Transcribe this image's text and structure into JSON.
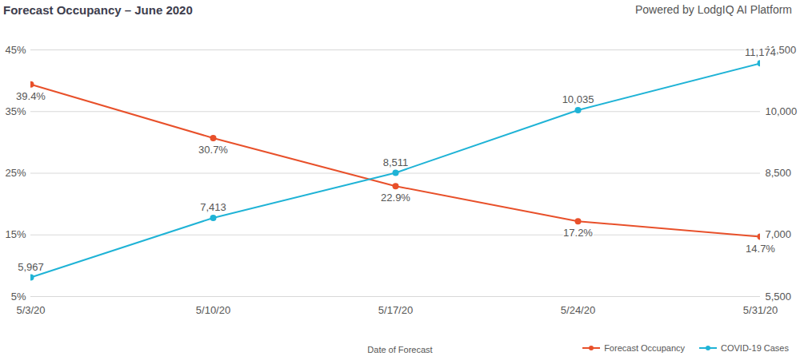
{
  "chart_data": {
    "type": "line",
    "title": "Forecast Occupancy – June 2020",
    "subtitle": "Powered by LodgIQ AI Platform",
    "x_label": "Date of Forecast",
    "categories": [
      "5/3/20",
      "5/10/20",
      "5/17/20",
      "5/24/20",
      "5/31/20"
    ],
    "series": [
      {
        "name": "Forecast Occupancy",
        "color": "#e8502a",
        "marker": "circle",
        "values": [
          39.4,
          30.7,
          22.9,
          17.2,
          14.7
        ],
        "value_labels": [
          "39.4%",
          "30.7%",
          "22.9%",
          "17.2%",
          "14.7%"
        ]
      },
      {
        "name": "COVID-19 Cases",
        "color": "#1fb3d6",
        "marker": "circle",
        "axis": "y2",
        "values": [
          5967,
          7413,
          8511,
          10035,
          11174
        ],
        "value_labels": [
          "5,967",
          "7,413",
          "8,511",
          "10,035",
          "11,174"
        ]
      }
    ],
    "ylim": [
      5,
      45
    ],
    "yticks": [
      {
        "value": 5,
        "label": "5%"
      },
      {
        "value": 15,
        "label": "15%"
      },
      {
        "value": 25,
        "label": "25%"
      },
      {
        "value": 35,
        "label": "35%"
      },
      {
        "value": 45,
        "label": "45%"
      }
    ],
    "y2lim": [
      5500,
      11500
    ],
    "y2ticks": [
      {
        "value": 5500,
        "label": "5,500"
      },
      {
        "value": 7000,
        "label": "7,000"
      },
      {
        "value": 8500,
        "label": "8,500"
      },
      {
        "value": 10000,
        "label": "10,000"
      },
      {
        "value": 11500,
        "label": "11,500"
      }
    ],
    "grid": true,
    "legend": "bottom-right",
    "data_labels": true
  }
}
